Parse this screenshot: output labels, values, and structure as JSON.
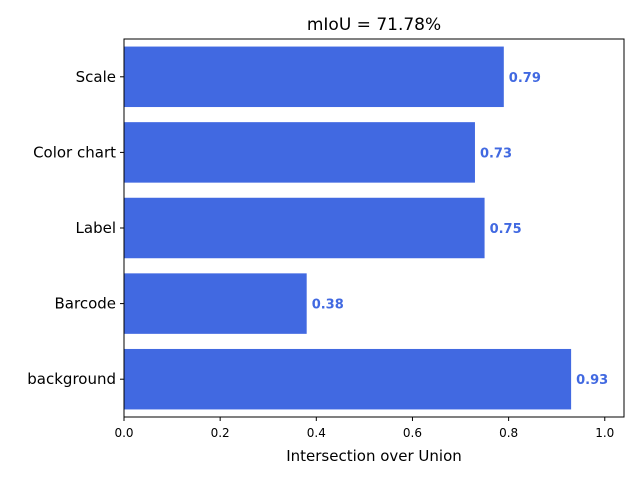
{
  "chart_data": {
    "type": "bar",
    "orientation": "horizontal",
    "title": "mIoU = 71.78%",
    "xlabel": "Intersection over Union",
    "ylabel": "",
    "categories": [
      "Scale",
      "Color chart",
      "Label",
      "Barcode",
      "background"
    ],
    "values": [
      0.79,
      0.73,
      0.75,
      0.38,
      0.93
    ],
    "value_labels": [
      "0.79",
      "0.73",
      "0.75",
      "0.38",
      "0.93"
    ],
    "xlim": [
      0,
      1.04
    ],
    "xticks": [
      "0.0",
      "0.2",
      "0.4",
      "0.6",
      "0.8",
      "1.0"
    ],
    "grid": false,
    "bar_color": "#4169e1",
    "label_color": "#4169e1"
  }
}
